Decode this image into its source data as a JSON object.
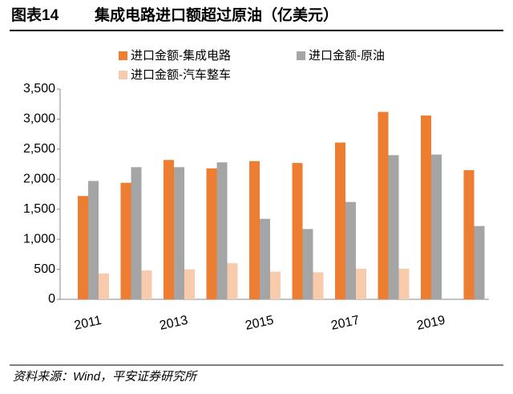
{
  "chart_data": {
    "type": "bar",
    "figure_label": "图表14",
    "title": "集成电路进口额超过原油（亿美元）",
    "source": "资料来源：Wind，平安证券研究所",
    "categories": [
      "2011",
      null,
      "2013",
      null,
      "2015",
      null,
      "2017",
      null,
      "2019",
      null
    ],
    "series": [
      {
        "name": "进口金额-集成电路",
        "color": "#ed7d31",
        "values": [
          1720,
          1940,
          2320,
          2180,
          2300,
          2270,
          2610,
          3120,
          3060,
          2150
        ]
      },
      {
        "name": "进口金额-原油",
        "color": "#a5a5a5",
        "values": [
          1970,
          2200,
          2200,
          2280,
          1340,
          1170,
          1620,
          2400,
          2410,
          1220
        ]
      },
      {
        "name": "进口金额-汽车整车",
        "color": "#f8cbad",
        "values": [
          430,
          480,
          500,
          600,
          460,
          450,
          510,
          510,
          null,
          null
        ]
      }
    ],
    "ylim": [
      0,
      3500
    ],
    "yticks": [
      0,
      500,
      {
        "value": 1000,
        "label": "1,000"
      },
      {
        "value": 1500,
        "label": "1,500"
      },
      {
        "value": 2000,
        "label": "2,000"
      },
      {
        "value": 2500,
        "label": "2,500"
      },
      {
        "value": 3000,
        "label": "3,000"
      },
      {
        "value": 3500,
        "label": "3,500"
      }
    ],
    "grid": false
  }
}
